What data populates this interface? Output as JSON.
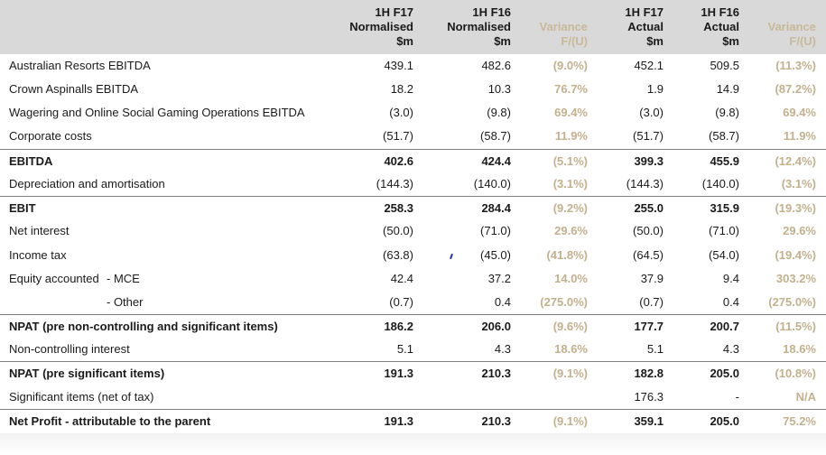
{
  "headers": [
    {
      "line1": "1H F17",
      "line2": "Normalised",
      "line3": "$m"
    },
    {
      "line1": "1H F16",
      "line2": "Normalised",
      "line3": "$m"
    },
    {
      "line1": "",
      "line2": "Variance",
      "line3": "F/(U)"
    },
    {
      "line1": "1H F17",
      "line2": "Actual",
      "line3": "$m"
    },
    {
      "line1": "1H F16",
      "line2": "Actual",
      "line3": "$m"
    },
    {
      "line1": "",
      "line2": "Variance",
      "line3": "F/(U)"
    }
  ],
  "rows": [
    {
      "label": "Australian Resorts EBITDA",
      "sub": "",
      "values": [
        "439.1",
        "482.6",
        "(9.0%)",
        "452.1",
        "509.5",
        "(11.3%)"
      ]
    },
    {
      "label": "Crown Aspinalls EBITDA",
      "sub": "",
      "values": [
        "18.2",
        "10.3",
        "76.7%",
        "1.9",
        "14.9",
        "(87.2%)"
      ]
    },
    {
      "label": "Wagering and Online Social Gaming Operations EBITDA",
      "sub": "",
      "values": [
        "(3.0)",
        "(9.8)",
        "69.4%",
        "(3.0)",
        "(9.8)",
        "69.4%"
      ]
    },
    {
      "label": "Corporate costs",
      "sub": "",
      "values": [
        "(51.7)",
        "(58.7)",
        "11.9%",
        "(51.7)",
        "(58.7)",
        "11.9%"
      ]
    },
    {
      "label": "EBITDA",
      "sub": "",
      "values": [
        "402.6",
        "424.4",
        "(5.1%)",
        "399.3",
        "455.9",
        "(12.4%)"
      ]
    },
    {
      "label": "Depreciation and amortisation",
      "sub": "",
      "values": [
        "(144.3)",
        "(140.0)",
        "(3.1%)",
        "(144.3)",
        "(140.0)",
        "(3.1%)"
      ]
    },
    {
      "label": "EBIT",
      "sub": "",
      "values": [
        "258.3",
        "284.4",
        "(9.2%)",
        "255.0",
        "315.9",
        "(19.3%)"
      ]
    },
    {
      "label": "Net interest",
      "sub": "",
      "values": [
        "(50.0)",
        "(71.0)",
        "29.6%",
        "(50.0)",
        "(71.0)",
        "29.6%"
      ]
    },
    {
      "label": "Income tax",
      "sub": "",
      "values": [
        "(63.8)",
        "(45.0)",
        "(41.8%)",
        "(64.5)",
        "(54.0)",
        "(19.4%)"
      ]
    },
    {
      "label": "Equity accounted",
      "sub": "- MCE",
      "values": [
        "42.4",
        "37.2",
        "14.0%",
        "37.9",
        "9.4",
        "303.2%"
      ]
    },
    {
      "label": "",
      "sub": "- Other",
      "values": [
        "(0.7)",
        "0.4",
        "(275.0%)",
        "(0.7)",
        "0.4",
        "(275.0%)"
      ]
    },
    {
      "label": "NPAT (pre non-controlling and significant items)",
      "sub": "",
      "values": [
        "186.2",
        "206.0",
        "(9.6%)",
        "177.7",
        "200.7",
        "(11.5%)"
      ]
    },
    {
      "label": "Non-controlling interest",
      "sub": "",
      "values": [
        "5.1",
        "4.3",
        "18.6%",
        "5.1",
        "4.3",
        "18.6%"
      ]
    },
    {
      "label": "NPAT (pre significant items)",
      "sub": "",
      "values": [
        "191.3",
        "210.3",
        "(9.1%)",
        "182.8",
        "205.0",
        "(10.8%)"
      ]
    },
    {
      "label": "Significant items (net of tax)",
      "sub": "",
      "values": [
        "",
        "",
        "",
        "176.3",
        "-",
        "N/A"
      ]
    },
    {
      "label": "Net Profit - attributable to the parent",
      "sub": "",
      "values": [
        "191.3",
        "210.3",
        "(9.1%)",
        "359.1",
        "205.0",
        "75.2%"
      ]
    }
  ]
}
